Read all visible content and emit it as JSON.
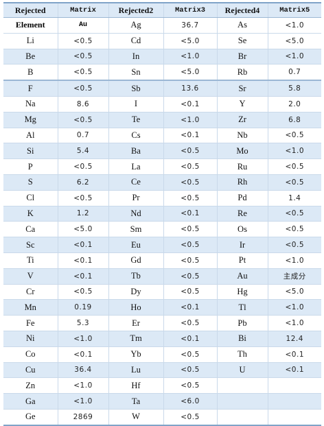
{
  "headers": [
    "Rejected",
    "Matrix",
    "Rejected2",
    "Matrix3",
    "Rejected4",
    "Matrix5"
  ],
  "subheader": [
    "Element",
    "Au",
    "Ag",
    "36.7",
    "As",
    "<1.0"
  ],
  "rows": [
    [
      "Li",
      "<0.5",
      "Cd",
      "<5.0",
      "Se",
      "<5.0"
    ],
    [
      "Be",
      "<0.5",
      "In",
      "<1.0",
      "Br",
      "<1.0"
    ],
    [
      "B",
      "<0.5",
      "Sn",
      "<5.0",
      "Rb",
      "0.7"
    ],
    [
      "F",
      "<0.5",
      "Sb",
      "13.6",
      "Sr",
      "5.8"
    ],
    [
      "Na",
      "8.6",
      "I",
      "<0.1",
      "Y",
      "2.0"
    ],
    [
      "Mg",
      "<0.5",
      "Te",
      "<1.0",
      "Zr",
      "6.8"
    ],
    [
      "Al",
      "0.7",
      "Cs",
      "<0.1",
      "Nb",
      "<0.5"
    ],
    [
      "Si",
      "5.4",
      "Ba",
      "<0.5",
      "Mo",
      "<1.0"
    ],
    [
      "P",
      "<0.5",
      "La",
      "<0.5",
      "Ru",
      "<0.5"
    ],
    [
      "S",
      "6.2",
      "Ce",
      "<0.5",
      "Rh",
      "<0.5"
    ],
    [
      "Cl",
      "<0.5",
      "Pr",
      "<0.5",
      "Pd",
      "1.4"
    ],
    [
      "K",
      "1.2",
      "Nd",
      "<0.1",
      "Re",
      "<0.5"
    ],
    [
      "Ca",
      "<5.0",
      "Sm",
      "<0.5",
      "Os",
      "<0.5"
    ],
    [
      "Sc",
      "<0.1",
      "Eu",
      "<0.5",
      "Ir",
      "<0.5"
    ],
    [
      "Ti",
      "<0.1",
      "Gd",
      "<0.5",
      "Pt",
      "<1.0"
    ],
    [
      "V",
      "<0.1",
      "Tb",
      "<0.5",
      "Au",
      "主成分"
    ],
    [
      "Cr",
      "<0.5",
      "Dy",
      "<0.5",
      "Hg",
      "<5.0"
    ],
    [
      "Mn",
      "0.19",
      "Ho",
      "<0.1",
      "Tl",
      "<1.0"
    ],
    [
      "Fe",
      "5.3",
      "Er",
      "<0.5",
      "Pb",
      "<1.0"
    ],
    [
      "Ni",
      "<1.0",
      "Tm",
      "<0.1",
      "Bi",
      "12.4"
    ],
    [
      "Co",
      "<0.1",
      "Yb",
      "<0.5",
      "Th",
      "<0.1"
    ],
    [
      "Cu",
      "36.4",
      "Lu",
      "<0.5",
      "U",
      "<0.1"
    ],
    [
      "Zn",
      "<1.0",
      "Hf",
      "<0.5",
      "",
      ""
    ],
    [
      "Ga",
      "<1.0",
      "Ta",
      "<6.0",
      "",
      ""
    ],
    [
      "Ge",
      "2869",
      "W",
      "<0.5",
      "",
      ""
    ]
  ]
}
